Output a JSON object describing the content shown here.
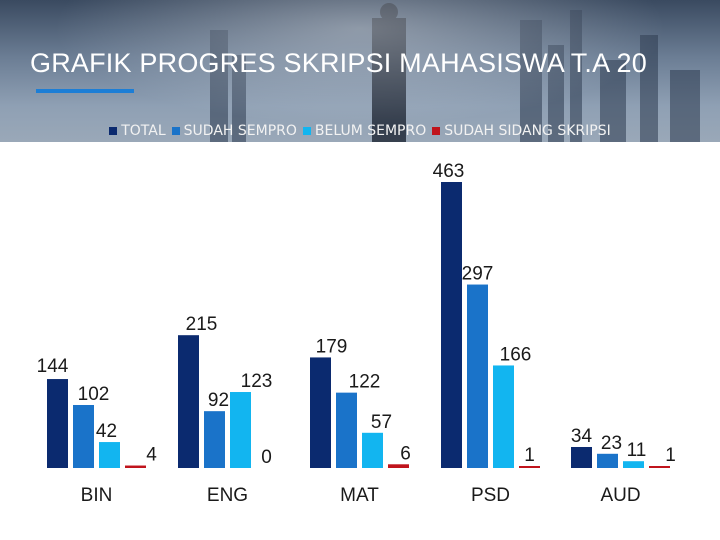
{
  "header": {
    "title": "GRAFIK PROGRES SKRIPSI MAHASISWA T.A 20"
  },
  "colors": {
    "title_accent": "#1c7ed6",
    "banner": "#6b7d94"
  },
  "chart_data": {
    "type": "bar",
    "title": "GRAFIK PROGRES SKRIPSI MAHASISWA T.A 20",
    "xlabel": "",
    "ylabel": "",
    "ylim": [
      0,
      463
    ],
    "grid": false,
    "legend_position": "top",
    "categories": [
      "BIN",
      "ENG",
      "MAT",
      "PSD",
      "AUD"
    ],
    "series": [
      {
        "name": "TOTAL",
        "color": "#0b2a6f",
        "values": [
          144,
          215,
          179,
          463,
          34
        ]
      },
      {
        "name": "SUDAH SEMPRO",
        "color": "#1a73c9",
        "values": [
          102,
          92,
          122,
          297,
          23
        ]
      },
      {
        "name": "BELUM SEMPRO",
        "color": "#12b5f0",
        "values": [
          42,
          123,
          57,
          166,
          11
        ]
      },
      {
        "name": "SUDAH SIDANG SKRIPSI",
        "color": "#c0141c",
        "values": [
          4,
          0,
          6,
          1,
          1
        ]
      }
    ]
  }
}
